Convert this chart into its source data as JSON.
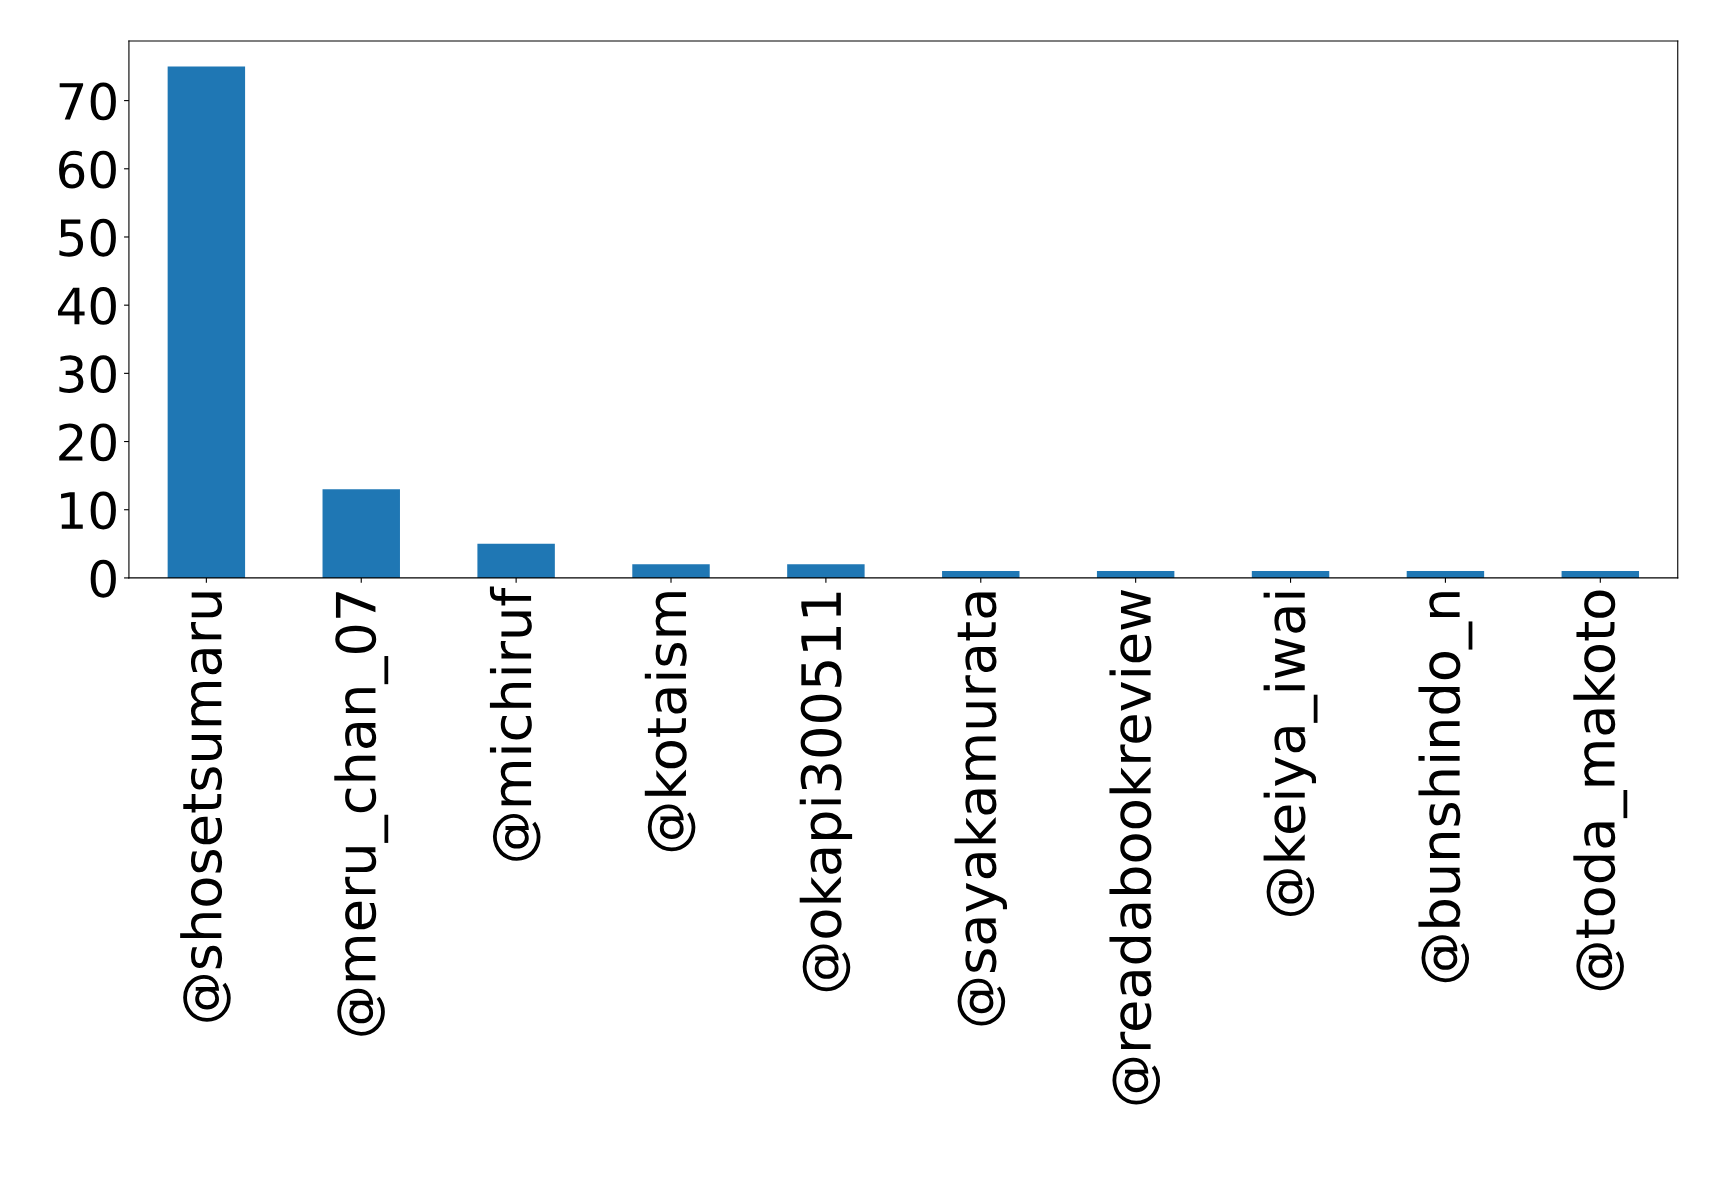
{
  "chart_data": {
    "type": "bar",
    "categories": [
      "@shosetsumaru",
      "@meru_chan_07",
      "@michiruf",
      "@kotaism",
      "@okapi300511",
      "@sayakamurata",
      "@readabookreview",
      "@keiya_iwai",
      "@bunshindo_n",
      "@toda_makoto"
    ],
    "values": [
      75,
      13,
      5,
      2,
      2,
      1,
      1,
      1,
      1,
      1
    ],
    "color": "#1f77b4",
    "ylim": [
      0,
      78.75
    ],
    "yticks": [
      0,
      10,
      20,
      30,
      40,
      50,
      60,
      70
    ],
    "grid": false,
    "legend": false
  }
}
